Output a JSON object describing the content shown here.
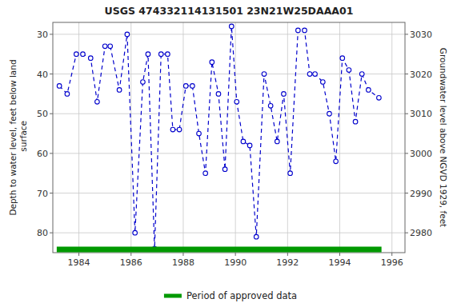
{
  "chart_data": {
    "type": "line",
    "title": "USGS 474332114131501 23N21W25DAAA01",
    "y_label": "Depth to water level, feet below land\n surface",
    "y2_label": "Groundwater level above NGVD 1929, feet",
    "x": [
      1983.25,
      1983.55,
      1983.9,
      1984.15,
      1984.45,
      1984.7,
      1985.0,
      1985.2,
      1985.55,
      1985.85,
      1986.15,
      1986.45,
      1986.65,
      1986.9,
      1987.15,
      1987.4,
      1987.6,
      1987.85,
      1988.1,
      1988.35,
      1988.6,
      1988.85,
      1989.1,
      1989.35,
      1989.6,
      1989.85,
      1990.05,
      1990.3,
      1990.55,
      1990.8,
      1991.1,
      1991.35,
      1991.6,
      1991.85,
      1992.1,
      1992.4,
      1992.65,
      1992.85,
      1993.05,
      1993.35,
      1993.6,
      1993.85,
      1994.1,
      1994.35,
      1994.6,
      1994.85,
      1995.1,
      1995.5
    ],
    "series": [
      {
        "color": "#0000cc",
        "marker": "open-circle",
        "line_style": "dashed",
        "values": [
          43,
          45,
          35,
          35,
          36,
          47,
          33,
          33,
          44,
          30,
          80,
          42,
          35,
          84,
          35,
          35,
          54,
          54,
          43,
          43,
          55,
          65,
          37,
          45,
          64,
          28,
          47,
          57,
          58,
          81,
          40,
          48,
          57,
          45,
          65,
          29,
          29,
          40,
          40,
          42,
          50,
          62,
          36,
          39,
          52,
          40,
          44,
          46
        ]
      },
      {
        "name": "Period of approved data",
        "type": "period",
        "color": "#009900",
        "x": [
          1983.15,
          1995.6
        ]
      }
    ],
    "xlim": [
      1983.0,
      1996.5
    ],
    "xticks": [
      1984,
      1986,
      1988,
      1990,
      1992,
      1994,
      1996
    ],
    "ylim": [
      85,
      27
    ],
    "yticks": [
      30,
      40,
      50,
      60,
      70,
      80
    ],
    "y2lim": [
      2975,
      3033
    ],
    "y2ticks": [
      2980,
      2990,
      3000,
      3010,
      3020,
      3030
    ],
    "grid": true,
    "legend": "bottom"
  }
}
